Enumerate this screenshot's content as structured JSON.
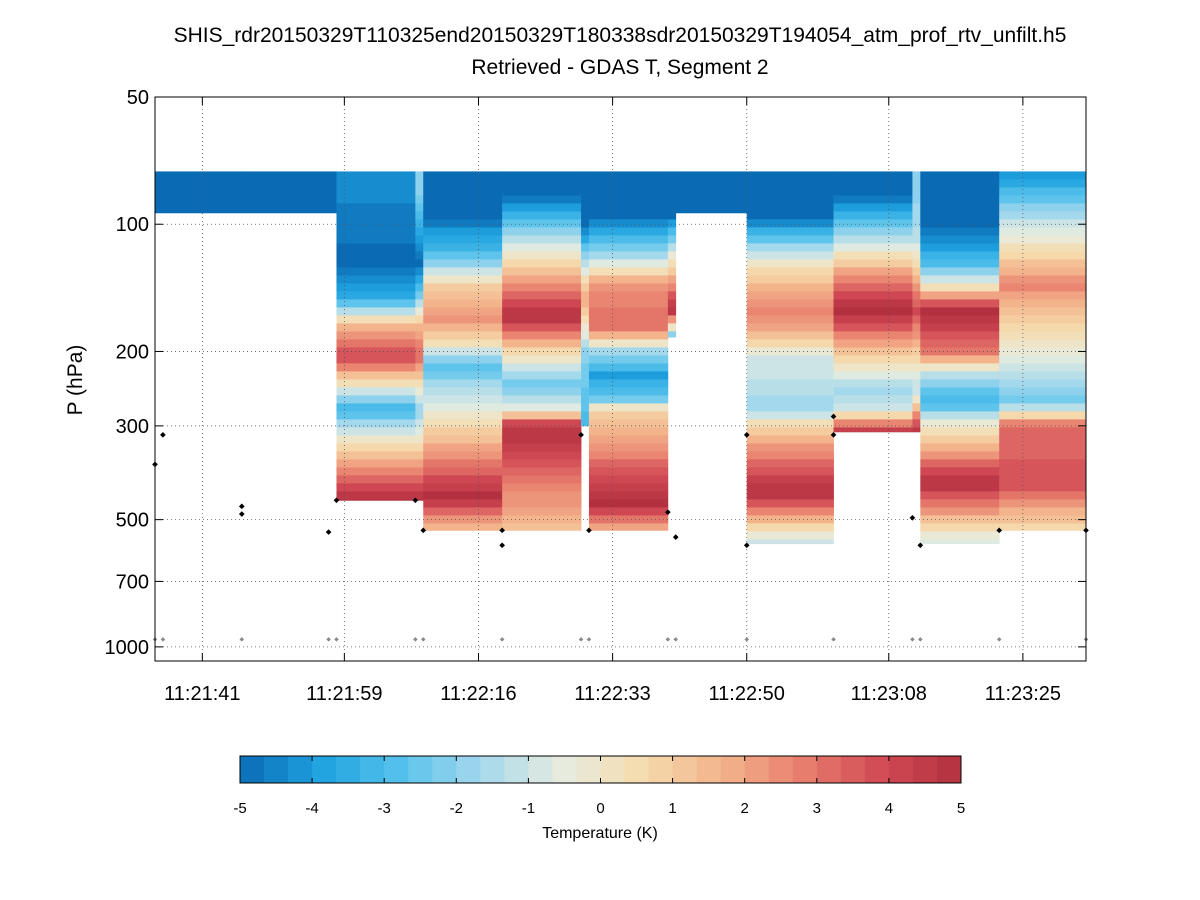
{
  "chart_data": {
    "type": "heatmap",
    "title": "SHIS_rdr20150329T110325end20150329T180338sdr20150329T194054_atm_prof_rtv_unfilt.h5",
    "subtitle": "Retrieved - GDAS T, Segment 2",
    "xlabel": "",
    "ylabel": "P (hPa)",
    "x_axis": {
      "type": "time",
      "range": [
        "11:21:35",
        "11:23:33"
      ],
      "tick_labels": [
        "11:21:41",
        "11:21:59",
        "11:22:16",
        "11:22:33",
        "11:22:50",
        "11:23:08",
        "11:23:25"
      ]
    },
    "y_axis": {
      "scale": "log",
      "reversed": true,
      "range": [
        50,
        1080
      ],
      "ticks": [
        50,
        100,
        200,
        300,
        500,
        700,
        1000
      ],
      "tick_labels": [
        "50",
        "100",
        "200",
        "300",
        "500",
        "700",
        "1000"
      ]
    },
    "grid": true,
    "colorbar": {
      "label": "Temperature (K)",
      "range": [
        -5,
        5
      ],
      "ticks": [
        -5,
        -4,
        -3,
        -2,
        -1,
        0,
        1,
        2,
        3,
        4,
        5
      ],
      "tick_labels": [
        "-5",
        "-4",
        "-3",
        "-2",
        "-1",
        "0",
        "1",
        "2",
        "3",
        "4",
        "5"
      ],
      "colormap": [
        "#0a6bb4",
        "#1fa2e0",
        "#56c2ec",
        "#a4d8ec",
        "#e6ece0",
        "#f5dcae",
        "#f3b48c",
        "#e8806e",
        "#d24a55",
        "#b2303f"
      ]
    },
    "profiles": [
      {
        "t0": "11:21:35",
        "t1": "11:21:46",
        "p_top": 75,
        "p_bottom": 94,
        "levels": [
          {
            "p": 94,
            "v": -5
          }
        ]
      },
      {
        "t0": "11:21:46",
        "t1": "11:21:58",
        "p_top": 75,
        "p_bottom": 94,
        "levels": [
          {
            "p": 94,
            "v": -5
          }
        ]
      },
      {
        "t0": "11:21:58",
        "t1": "11:22:08",
        "p_top": 75,
        "p_bottom": 450,
        "levels": [
          {
            "p": 85,
            "v": -4.4
          },
          {
            "p": 125,
            "v": -5
          },
          {
            "p": 150,
            "v": -3.6
          },
          {
            "p": 175,
            "v": 1.6
          },
          {
            "p": 205,
            "v": 4.2
          },
          {
            "p": 235,
            "v": 0.6
          },
          {
            "p": 275,
            "v": -3.4
          },
          {
            "p": 310,
            "v": -0.8
          },
          {
            "p": 450,
            "v": 5
          }
        ]
      },
      {
        "t0": "11:22:08",
        "t1": "11:22:09",
        "p_top": 75,
        "p_bottom": 450,
        "levels": [
          {
            "p": 85,
            "v": -2
          },
          {
            "p": 125,
            "v": -5
          },
          {
            "p": 150,
            "v": -2
          },
          {
            "p": 175,
            "v": 1.6
          },
          {
            "p": 205,
            "v": 3.4
          },
          {
            "p": 235,
            "v": 0.6
          },
          {
            "p": 275,
            "v": -2
          },
          {
            "p": 310,
            "v": -0.6
          },
          {
            "p": 450,
            "v": 5
          }
        ]
      },
      {
        "t0": "11:22:09",
        "t1": "11:22:19",
        "p_top": 75,
        "p_bottom": 530,
        "levels": [
          {
            "p": 95,
            "v": -5
          },
          {
            "p": 105,
            "v": -4
          },
          {
            "p": 120,
            "v": -2.6
          },
          {
            "p": 140,
            "v": 0.8
          },
          {
            "p": 165,
            "v": 2.4
          },
          {
            "p": 190,
            "v": 0.6
          },
          {
            "p": 215,
            "v": -3
          },
          {
            "p": 245,
            "v": -1.4
          },
          {
            "p": 275,
            "v": -0.4
          },
          {
            "p": 440,
            "v": 5
          },
          {
            "p": 530,
            "v": 1.2
          }
        ]
      },
      {
        "t0": "11:22:19",
        "t1": "11:22:29",
        "p_top": 75,
        "p_bottom": 530,
        "levels": [
          {
            "p": 85,
            "v": -5
          },
          {
            "p": 110,
            "v": -1
          },
          {
            "p": 135,
            "v": 2
          },
          {
            "p": 165,
            "v": 5
          },
          {
            "p": 195,
            "v": 1.2
          },
          {
            "p": 240,
            "v": -2.6
          },
          {
            "p": 275,
            "v": -0.6
          },
          {
            "p": 300,
            "v": 5
          },
          {
            "p": 530,
            "v": 1.2
          }
        ]
      },
      {
        "t0": "11:22:29",
        "t1": "11:22:30",
        "p_top": 75,
        "p_bottom": 300,
        "levels": [
          {
            "p": 100,
            "v": -5
          },
          {
            "p": 150,
            "v": 2
          },
          {
            "p": 200,
            "v": -2
          },
          {
            "p": 300,
            "v": -3
          }
        ]
      },
      {
        "t0": "11:22:30",
        "t1": "11:22:40",
        "p_top": 75,
        "p_bottom": 530,
        "levels": [
          {
            "p": 95,
            "v": -5
          },
          {
            "p": 120,
            "v": -1.4
          },
          {
            "p": 140,
            "v": 2.4
          },
          {
            "p": 175,
            "v": 3.2
          },
          {
            "p": 200,
            "v": -1.6
          },
          {
            "p": 230,
            "v": -4
          },
          {
            "p": 260,
            "v": -2.2
          },
          {
            "p": 275,
            "v": 0.8
          },
          {
            "p": 460,
            "v": 5
          },
          {
            "p": 530,
            "v": 1.6
          }
        ]
      },
      {
        "t0": "11:22:40",
        "t1": "11:22:41",
        "p_top": 75,
        "p_bottom": 185,
        "levels": [
          {
            "p": 95,
            "v": -5
          },
          {
            "p": 115,
            "v": -1
          },
          {
            "p": 160,
            "v": 5
          },
          {
            "p": 185,
            "v": -3
          }
        ]
      },
      {
        "t0": "11:22:41",
        "t1": "11:22:50",
        "p_top": 75,
        "p_bottom": 94,
        "levels": [
          {
            "p": 94,
            "v": -5
          }
        ]
      },
      {
        "t0": "11:22:50",
        "t1": "11:23:01",
        "p_top": 75,
        "p_bottom": 570,
        "levels": [
          {
            "p": 95,
            "v": -5
          },
          {
            "p": 110,
            "v": -2.4
          },
          {
            "p": 130,
            "v": 0.8
          },
          {
            "p": 160,
            "v": 2.6
          },
          {
            "p": 185,
            "v": 1.4
          },
          {
            "p": 205,
            "v": -0.8
          },
          {
            "p": 275,
            "v": -1.8
          },
          {
            "p": 300,
            "v": 0.8
          },
          {
            "p": 430,
            "v": 5
          },
          {
            "p": 570,
            "v": -1.4
          }
        ]
      },
      {
        "t0": "11:23:01",
        "t1": "11:23:11",
        "p_top": 75,
        "p_bottom": 310,
        "levels": [
          {
            "p": 85,
            "v": -5
          },
          {
            "p": 110,
            "v": -1.2
          },
          {
            "p": 140,
            "v": 3.4
          },
          {
            "p": 160,
            "v": 5
          },
          {
            "p": 195,
            "v": 1.8
          },
          {
            "p": 245,
            "v": -1.8
          },
          {
            "p": 275,
            "v": -1
          },
          {
            "p": 310,
            "v": 5
          }
        ]
      },
      {
        "t0": "11:23:11",
        "t1": "11:23:12",
        "p_top": 75,
        "p_bottom": 310,
        "levels": [
          {
            "p": 85,
            "v": -2
          },
          {
            "p": 110,
            "v": -1.2
          },
          {
            "p": 160,
            "v": 4
          },
          {
            "p": 245,
            "v": -1.5
          },
          {
            "p": 310,
            "v": 5
          }
        ]
      },
      {
        "t0": "11:23:12",
        "t1": "11:23:22",
        "p_top": 75,
        "p_bottom": 570,
        "levels": [
          {
            "p": 100,
            "v": -5
          },
          {
            "p": 125,
            "v": -3
          },
          {
            "p": 140,
            "v": 0
          },
          {
            "p": 160,
            "v": 5
          },
          {
            "p": 200,
            "v": 3
          },
          {
            "p": 230,
            "v": -1.6
          },
          {
            "p": 265,
            "v": -3.4
          },
          {
            "p": 290,
            "v": -0.8
          },
          {
            "p": 410,
            "v": 5
          },
          {
            "p": 570,
            "v": -1
          }
        ]
      },
      {
        "t0": "11:23:22",
        "t1": "11:23:33",
        "p_top": 75,
        "p_bottom": 530,
        "levels": [
          {
            "p": 78,
            "v": -4
          },
          {
            "p": 95,
            "v": -1.6
          },
          {
            "p": 115,
            "v": 0.4
          },
          {
            "p": 140,
            "v": 2.6
          },
          {
            "p": 175,
            "v": 0.6
          },
          {
            "p": 215,
            "v": -0.8
          },
          {
            "p": 265,
            "v": -2.4
          },
          {
            "p": 300,
            "v": 3.4
          },
          {
            "p": 420,
            "v": 3.6
          },
          {
            "p": 530,
            "v": 0.4
          }
        ]
      }
    ],
    "markers_black": [
      {
        "t": "11:21:35",
        "p": 370
      },
      {
        "t": "11:21:36",
        "p": 315
      },
      {
        "t": "11:21:46",
        "p": 465
      },
      {
        "t": "11:21:46",
        "p": 485
      },
      {
        "t": "11:21:57",
        "p": 535
      },
      {
        "t": "11:21:58",
        "p": 450
      },
      {
        "t": "11:22:08",
        "p": 450
      },
      {
        "t": "11:22:09",
        "p": 530
      },
      {
        "t": "11:22:19",
        "p": 530
      },
      {
        "t": "11:22:19",
        "p": 575
      },
      {
        "t": "11:22:29",
        "p": 315
      },
      {
        "t": "11:22:30",
        "p": 530
      },
      {
        "t": "11:22:40",
        "p": 480
      },
      {
        "t": "11:22:41",
        "p": 550
      },
      {
        "t": "11:22:50",
        "p": 315
      },
      {
        "t": "11:22:50",
        "p": 575
      },
      {
        "t": "11:23:01",
        "p": 285
      },
      {
        "t": "11:23:01",
        "p": 315
      },
      {
        "t": "11:23:11",
        "p": 495
      },
      {
        "t": "11:23:12",
        "p": 575
      },
      {
        "t": "11:23:22",
        "p": 530
      },
      {
        "t": "11:23:33",
        "p": 530
      }
    ],
    "markers_gray": [
      {
        "t": "11:21:35",
        "p": 960
      },
      {
        "t": "11:21:36",
        "p": 960
      },
      {
        "t": "11:21:46",
        "p": 960
      },
      {
        "t": "11:21:57",
        "p": 960
      },
      {
        "t": "11:21:58",
        "p": 960
      },
      {
        "t": "11:22:08",
        "p": 960
      },
      {
        "t": "11:22:09",
        "p": 960
      },
      {
        "t": "11:22:19",
        "p": 960
      },
      {
        "t": "11:22:29",
        "p": 960
      },
      {
        "t": "11:22:30",
        "p": 960
      },
      {
        "t": "11:22:40",
        "p": 960
      },
      {
        "t": "11:22:41",
        "p": 960
      },
      {
        "t": "11:22:50",
        "p": 960
      },
      {
        "t": "11:23:01",
        "p": 960
      },
      {
        "t": "11:23:11",
        "p": 960
      },
      {
        "t": "11:23:12",
        "p": 960
      },
      {
        "t": "11:23:22",
        "p": 960
      },
      {
        "t": "11:23:33",
        "p": 960
      }
    ]
  }
}
